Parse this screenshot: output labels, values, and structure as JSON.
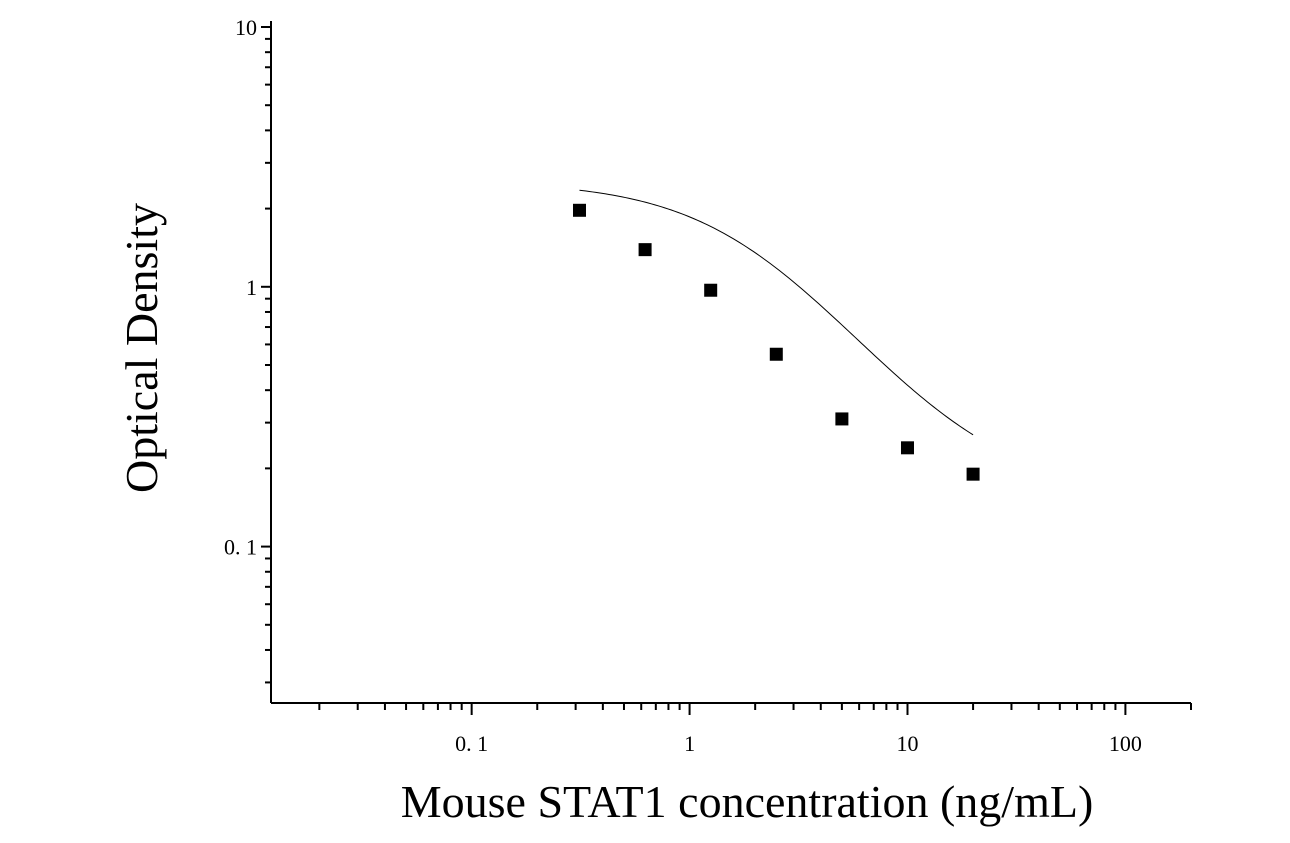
{
  "chart_data": {
    "type": "scatter",
    "title": "",
    "xlabel": "Mouse STAT1 concentration (ng/mL)",
    "ylabel": "Optical Density",
    "x_scale": "log",
    "y_scale": "log",
    "xlim": [
      0.012,
      200
    ],
    "ylim": [
      0.025,
      10
    ],
    "x_ticks": [
      {
        "value": 0.1,
        "label": "0. 1"
      },
      {
        "value": 1,
        "label": "1"
      },
      {
        "value": 10,
        "label": "10"
      },
      {
        "value": 100,
        "label": "100"
      }
    ],
    "y_ticks": [
      {
        "value": 0.1,
        "label": "0. 1"
      },
      {
        "value": 1,
        "label": "1"
      },
      {
        "value": 10,
        "label": "10"
      }
    ],
    "grid": false,
    "series": [
      {
        "marker": "square",
        "color": "#000000",
        "points": [
          {
            "x": 0.3125,
            "y": 1.97
          },
          {
            "x": 0.625,
            "y": 1.39
          },
          {
            "x": 1.25,
            "y": 0.97
          },
          {
            "x": 2.5,
            "y": 0.55
          },
          {
            "x": 5,
            "y": 0.31
          },
          {
            "x": 10,
            "y": 0.24
          },
          {
            "x": 20,
            "y": 0.19
          }
        ]
      }
    ],
    "fit_curve": {
      "type": "four-parameter-logistic",
      "color": "#000000",
      "x_range": [
        0.3125,
        20
      ],
      "params": {
        "top": 2.55,
        "bottom": 0.155,
        "ec50": 2.0,
        "hill": 1.3
      }
    }
  }
}
